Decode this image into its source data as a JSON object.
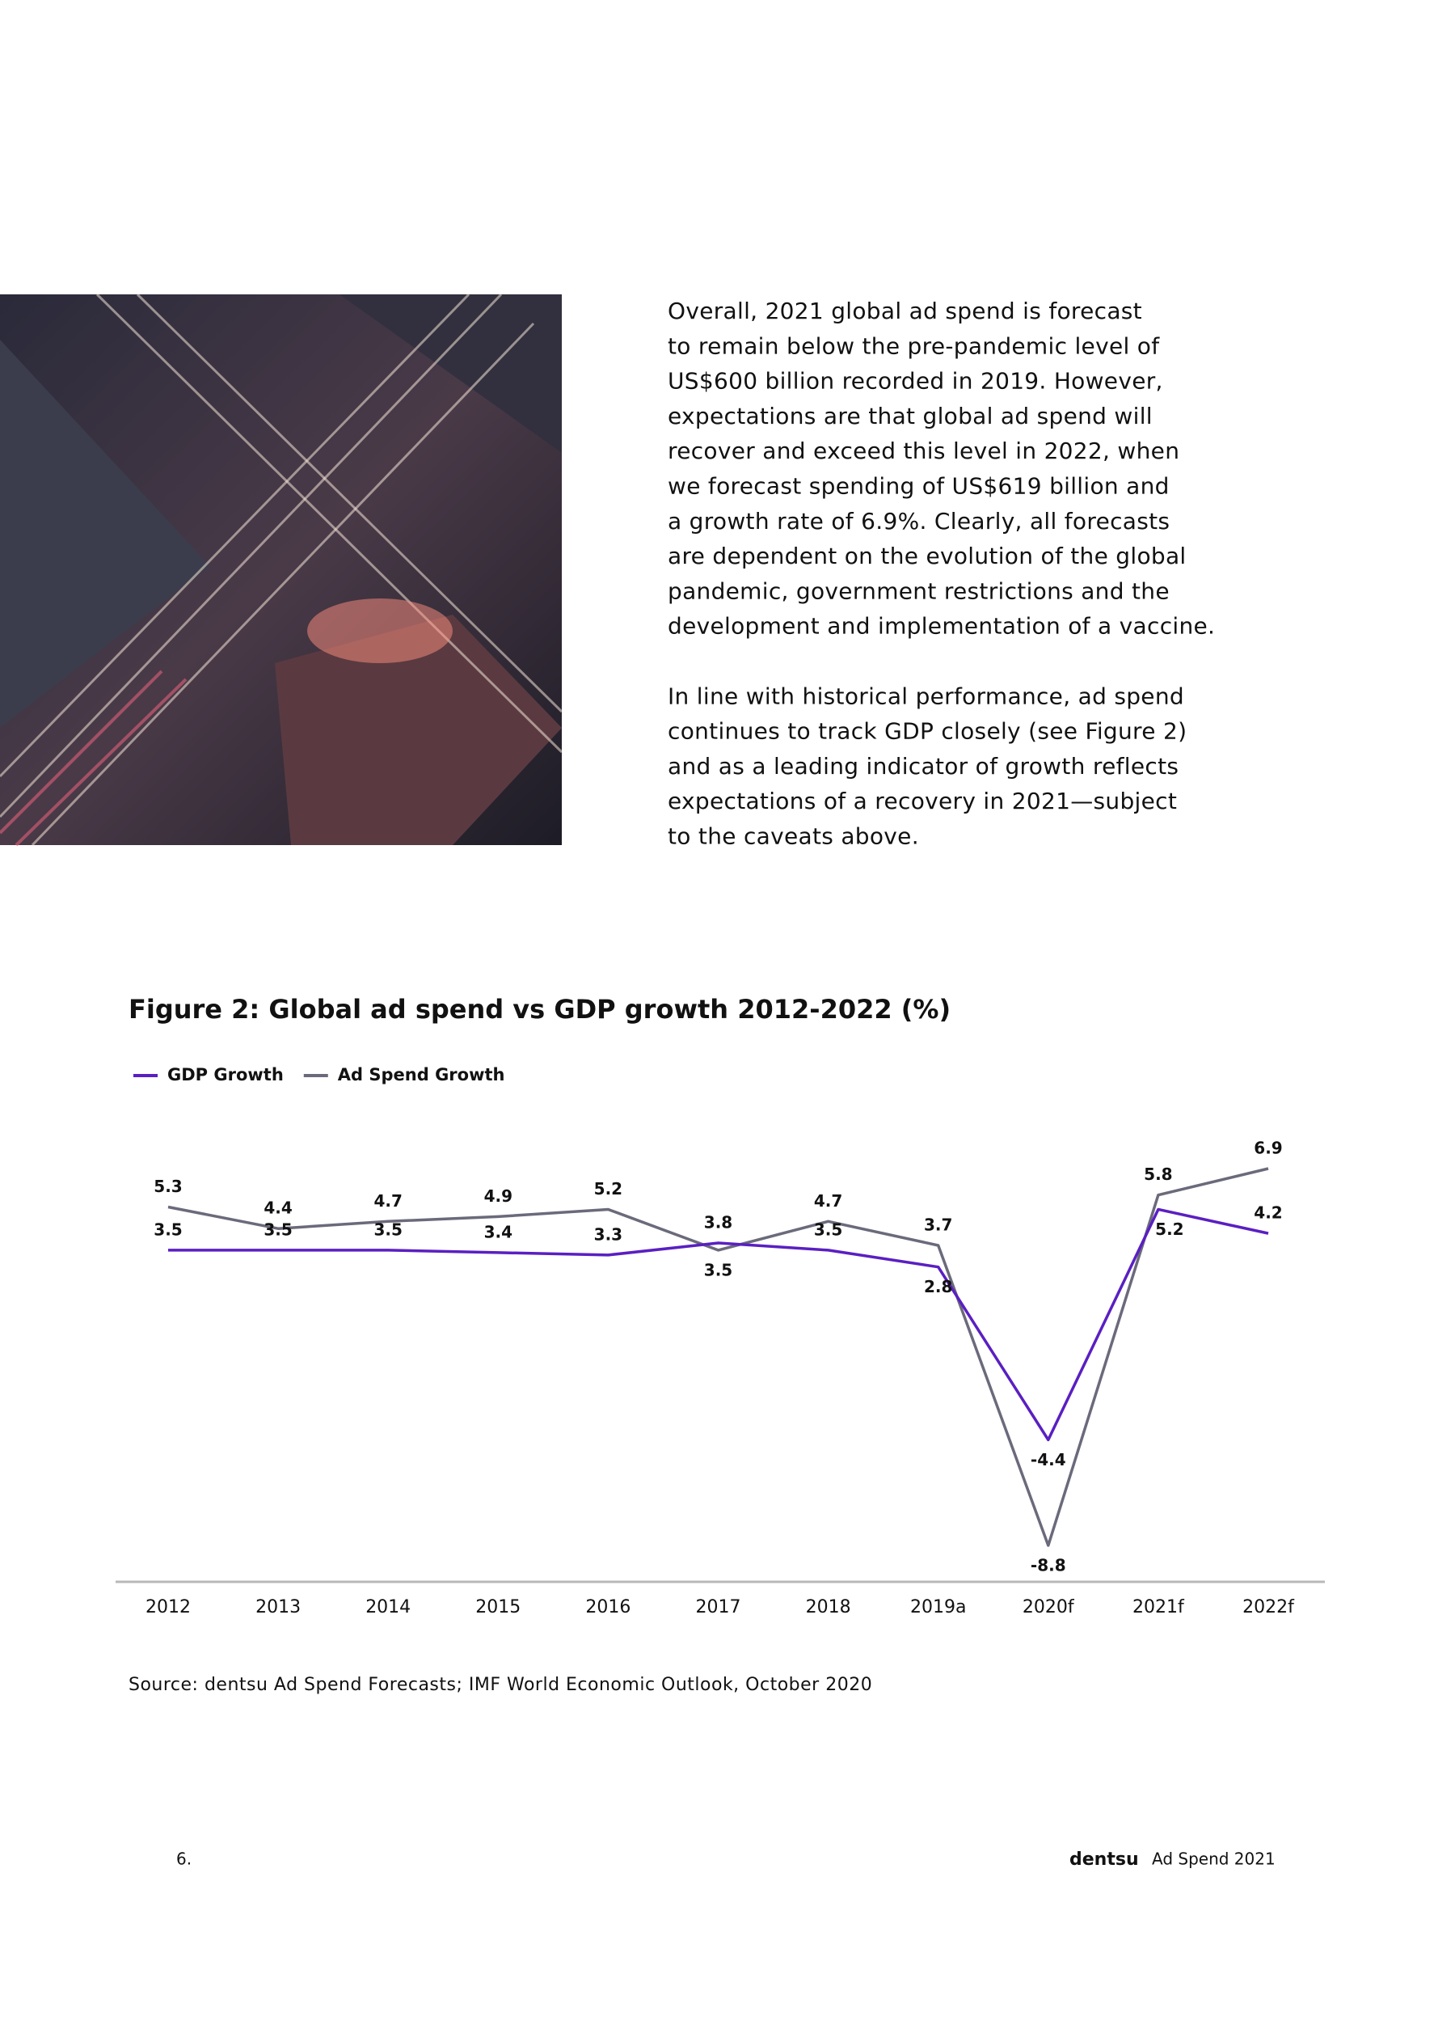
{
  "body": {
    "paragraphs": [
      [
        "Overall, 2021 global ad spend is forecast",
        "to remain below the pre-pandemic level of",
        "US$600 billion recorded in 2019. However,",
        "expectations are that global ad spend will",
        "recover and exceed this level in 2022, when",
        "we forecast spending of US$619 billion and",
        "a growth rate of 6.9%. Clearly, all forecasts",
        "are dependent on the evolution of the global",
        "pandemic, government restrictions and the",
        "development and implementation of a vaccine."
      ],
      [
        "In line with historical performance, ad spend",
        "continues to track GDP closely (see Figure 2)",
        "and as a leading indicator of growth reflects",
        "expectations of a recovery in 2021—subject",
        "to the caveats above."
      ]
    ]
  },
  "chart_data": {
    "type": "line",
    "title": "Figure 2: Global ad spend vs GDP growth 2012-2022 (%)",
    "categories": [
      "2012",
      "2013",
      "2014",
      "2015",
      "2016",
      "2017",
      "2018",
      "2019a",
      "2020f",
      "2021f",
      "2022f"
    ],
    "series": [
      {
        "name": "GDP Growth",
        "color": "#5a1fc2",
        "values": [
          3.5,
          3.5,
          3.5,
          3.4,
          3.3,
          3.8,
          3.5,
          2.8,
          -4.4,
          5.2,
          4.2
        ]
      },
      {
        "name": "Ad Spend Growth",
        "color": "#6b6a7b",
        "values": [
          5.3,
          4.4,
          4.7,
          4.9,
          5.2,
          3.5,
          4.7,
          3.7,
          -8.8,
          5.8,
          6.9
        ]
      }
    ]
  },
  "source": "Source: dentsu Ad Spend Forecasts; IMF World Economic Outlook, October 2020",
  "footer": {
    "page_number": "6.",
    "brand": "dentsu",
    "publication": "Ad Spend 2021"
  }
}
